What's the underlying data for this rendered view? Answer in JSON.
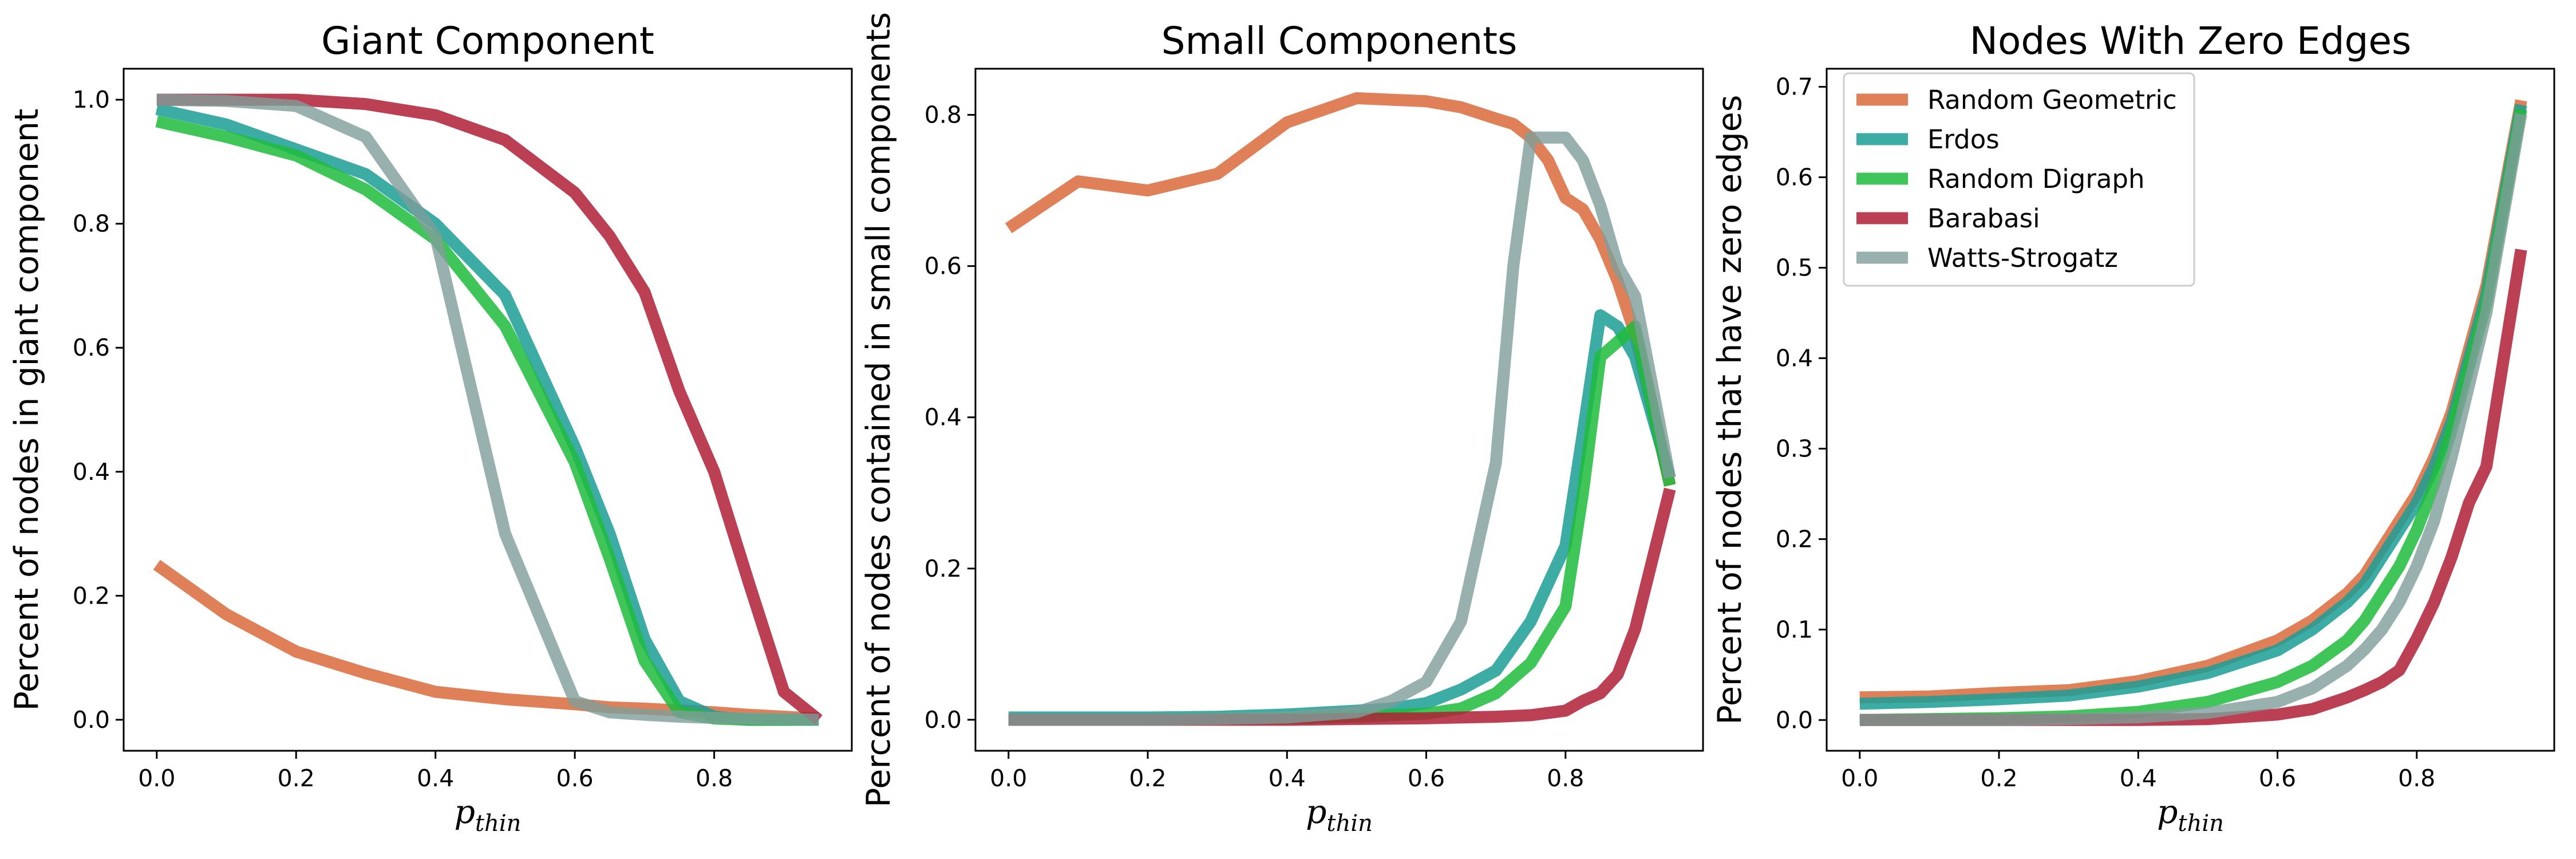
{
  "chart_data": [
    {
      "type": "line",
      "title": "Giant Component",
      "xlabel": "p_thin",
      "ylabel": "Percent of nodes in giant component",
      "xlim": [
        -0.0475,
        0.9975
      ],
      "ylim": [
        -0.05,
        1.05
      ],
      "xticks": [
        0.0,
        0.2,
        0.4,
        0.6,
        0.8
      ],
      "xtick_labels": [
        "0.0",
        "0.2",
        "0.4",
        "0.6",
        "0.8"
      ],
      "yticks": [
        0.0,
        0.2,
        0.4,
        0.6,
        0.8,
        1.0
      ],
      "ytick_labels": [
        "0.0",
        "0.2",
        "0.4",
        "0.6",
        "0.8",
        "1.0"
      ],
      "grid": false,
      "series": [
        {
          "name": "Random Geometric",
          "color": "#d96a3b",
          "alpha": 0.85,
          "x": [
            0.0,
            0.1,
            0.2,
            0.3,
            0.4,
            0.5,
            0.6,
            0.65,
            0.7,
            0.75,
            0.8,
            0.85,
            0.9,
            0.95
          ],
          "y": [
            0.25,
            0.17,
            0.11,
            0.075,
            0.045,
            0.033,
            0.025,
            0.02,
            0.018,
            0.015,
            0.012,
            0.008,
            0.005,
            0.002
          ]
        },
        {
          "name": "Erdos",
          "color": "#1b9e95",
          "alpha": 0.85,
          "x": [
            0.0,
            0.1,
            0.2,
            0.3,
            0.4,
            0.5,
            0.6,
            0.65,
            0.7,
            0.75,
            0.8,
            0.85,
            0.9,
            0.95
          ],
          "y": [
            0.985,
            0.96,
            0.92,
            0.88,
            0.8,
            0.685,
            0.44,
            0.3,
            0.13,
            0.03,
            0.005,
            0.0,
            0.0,
            0.0
          ]
        },
        {
          "name": "Random Digraph",
          "color": "#1fbb3c",
          "alpha": 0.85,
          "x": [
            0.0,
            0.1,
            0.2,
            0.3,
            0.4,
            0.5,
            0.6,
            0.65,
            0.7,
            0.75,
            0.8,
            0.85,
            0.9,
            0.95
          ],
          "y": [
            0.965,
            0.94,
            0.91,
            0.855,
            0.775,
            0.635,
            0.415,
            0.26,
            0.095,
            0.012,
            0.002,
            0.0,
            0.0,
            0.0
          ]
        },
        {
          "name": "Barabasi",
          "color": "#b01e35",
          "alpha": 0.85,
          "x": [
            0.0,
            0.1,
            0.2,
            0.3,
            0.4,
            0.5,
            0.6,
            0.65,
            0.7,
            0.75,
            0.8,
            0.85,
            0.9,
            0.95
          ],
          "y": [
            1.0,
            1.0,
            1.0,
            0.993,
            0.975,
            0.935,
            0.85,
            0.78,
            0.69,
            0.53,
            0.4,
            0.22,
            0.045,
            0.0
          ]
        },
        {
          "name": "Watts-Strogatz",
          "color": "#7e9e9a",
          "alpha": 0.8,
          "x": [
            0.0,
            0.1,
            0.2,
            0.3,
            0.4,
            0.5,
            0.6,
            0.65,
            0.7,
            0.75,
            0.8,
            0.85,
            0.9,
            0.95
          ],
          "y": [
            1.0,
            0.998,
            0.99,
            0.94,
            0.78,
            0.3,
            0.03,
            0.012,
            0.008,
            0.005,
            0.003,
            0.002,
            0.001,
            0.0
          ]
        }
      ]
    },
    {
      "type": "line",
      "title": "Small Components",
      "xlabel": "p_thin",
      "ylabel": "Percent of nodes contained in small components",
      "xlim": [
        -0.0475,
        0.9975
      ],
      "ylim": [
        -0.041,
        0.861
      ],
      "xticks": [
        0.0,
        0.2,
        0.4,
        0.6,
        0.8
      ],
      "xtick_labels": [
        "0.0",
        "0.2",
        "0.4",
        "0.6",
        "0.8"
      ],
      "yticks": [
        0.0,
        0.2,
        0.4,
        0.6,
        0.8
      ],
      "ytick_labels": [
        "0.0",
        "0.2",
        "0.4",
        "0.6",
        "0.8"
      ],
      "grid": false,
      "series": [
        {
          "name": "Random Geometric",
          "color": "#d96a3b",
          "alpha": 0.85,
          "x": [
            0.0,
            0.1,
            0.2,
            0.3,
            0.4,
            0.5,
            0.6,
            0.65,
            0.7,
            0.725,
            0.75,
            0.775,
            0.8,
            0.825,
            0.85,
            0.875,
            0.9,
            0.95
          ],
          "y": [
            0.65,
            0.712,
            0.7,
            0.722,
            0.79,
            0.822,
            0.818,
            0.81,
            0.795,
            0.788,
            0.77,
            0.74,
            0.69,
            0.675,
            0.635,
            0.58,
            0.51,
            0.31
          ]
        },
        {
          "name": "Erdos",
          "color": "#1b9e95",
          "alpha": 0.85,
          "x": [
            0.0,
            0.1,
            0.2,
            0.3,
            0.4,
            0.5,
            0.55,
            0.6,
            0.65,
            0.7,
            0.75,
            0.8,
            0.825,
            0.85,
            0.875,
            0.9,
            0.95
          ],
          "y": [
            0.003,
            0.003,
            0.003,
            0.004,
            0.007,
            0.012,
            0.015,
            0.022,
            0.04,
            0.065,
            0.13,
            0.23,
            0.38,
            0.535,
            0.52,
            0.48,
            0.32
          ]
        },
        {
          "name": "Random Digraph",
          "color": "#1fbb3c",
          "alpha": 0.85,
          "x": [
            0.0,
            0.1,
            0.2,
            0.3,
            0.4,
            0.5,
            0.6,
            0.65,
            0.7,
            0.75,
            0.8,
            0.825,
            0.85,
            0.875,
            0.9,
            0.95
          ],
          "y": [
            0.0,
            0.0,
            0.0,
            0.001,
            0.002,
            0.004,
            0.008,
            0.015,
            0.035,
            0.075,
            0.15,
            0.3,
            0.48,
            0.5,
            0.52,
            0.31
          ]
        },
        {
          "name": "Barabasi",
          "color": "#b01e35",
          "alpha": 0.85,
          "x": [
            0.0,
            0.1,
            0.2,
            0.3,
            0.4,
            0.5,
            0.6,
            0.65,
            0.7,
            0.75,
            0.8,
            0.825,
            0.85,
            0.875,
            0.9,
            0.95
          ],
          "y": [
            0.0,
            0.0,
            0.0,
            0.0,
            0.0,
            0.001,
            0.002,
            0.003,
            0.004,
            0.006,
            0.012,
            0.025,
            0.035,
            0.06,
            0.12,
            0.305
          ]
        },
        {
          "name": "Watts-Strogatz",
          "color": "#7e9e9a",
          "alpha": 0.8,
          "x": [
            0.0,
            0.1,
            0.2,
            0.3,
            0.4,
            0.5,
            0.55,
            0.6,
            0.65,
            0.7,
            0.725,
            0.75,
            0.775,
            0.8,
            0.825,
            0.85,
            0.875,
            0.9,
            0.95
          ],
          "y": [
            0.0,
            0.0,
            0.0,
            0.001,
            0.003,
            0.01,
            0.025,
            0.05,
            0.13,
            0.34,
            0.6,
            0.77,
            0.77,
            0.77,
            0.74,
            0.68,
            0.6,
            0.56,
            0.32
          ]
        }
      ]
    },
    {
      "type": "line",
      "title": "Nodes With Zero Edges",
      "xlabel": "p_thin",
      "ylabel": "Percent of nodes that have zero edges",
      "xlim": [
        -0.0475,
        0.9975
      ],
      "ylim": [
        -0.034,
        0.72
      ],
      "xticks": [
        0.0,
        0.2,
        0.4,
        0.6,
        0.8
      ],
      "xtick_labels": [
        "0.0",
        "0.2",
        "0.4",
        "0.6",
        "0.8"
      ],
      "yticks": [
        0.0,
        0.1,
        0.2,
        0.3,
        0.4,
        0.5,
        0.6,
        0.7
      ],
      "ytick_labels": [
        "0.0",
        "0.1",
        "0.2",
        "0.3",
        "0.4",
        "0.5",
        "0.6",
        "0.7"
      ],
      "grid": false,
      "legend": {
        "placement": "top-left",
        "entries": [
          "Random Geometric",
          "Erdos",
          "Random Digraph",
          "Barabasi",
          "Watts-Strogatz"
        ]
      },
      "series": [
        {
          "name": "Random Geometric",
          "color": "#d96a3b",
          "alpha": 0.85,
          "x": [
            0.0,
            0.1,
            0.2,
            0.3,
            0.4,
            0.5,
            0.6,
            0.65,
            0.7,
            0.725,
            0.75,
            0.775,
            0.8,
            0.825,
            0.85,
            0.875,
            0.9,
            0.95
          ],
          "y": [
            0.025,
            0.026,
            0.03,
            0.033,
            0.043,
            0.06,
            0.088,
            0.11,
            0.14,
            0.16,
            0.19,
            0.22,
            0.25,
            0.29,
            0.34,
            0.41,
            0.48,
            0.685
          ]
        },
        {
          "name": "Erdos",
          "color": "#1b9e95",
          "alpha": 0.85,
          "x": [
            0.0,
            0.1,
            0.2,
            0.3,
            0.4,
            0.5,
            0.6,
            0.65,
            0.7,
            0.725,
            0.75,
            0.775,
            0.8,
            0.825,
            0.85,
            0.875,
            0.9,
            0.95
          ],
          "y": [
            0.018,
            0.02,
            0.023,
            0.027,
            0.037,
            0.052,
            0.077,
            0.1,
            0.13,
            0.15,
            0.18,
            0.21,
            0.24,
            0.28,
            0.33,
            0.4,
            0.47,
            0.68
          ]
        },
        {
          "name": "Random Digraph",
          "color": "#1fbb3c",
          "alpha": 0.85,
          "x": [
            0.0,
            0.1,
            0.2,
            0.3,
            0.4,
            0.5,
            0.6,
            0.65,
            0.7,
            0.725,
            0.75,
            0.775,
            0.8,
            0.825,
            0.85,
            0.875,
            0.9,
            0.95
          ],
          "y": [
            0.0,
            0.001,
            0.002,
            0.004,
            0.009,
            0.02,
            0.042,
            0.06,
            0.088,
            0.11,
            0.14,
            0.17,
            0.21,
            0.26,
            0.32,
            0.39,
            0.46,
            0.675
          ]
        },
        {
          "name": "Barabasi",
          "color": "#b01e35",
          "alpha": 0.85,
          "x": [
            0.0,
            0.1,
            0.2,
            0.3,
            0.4,
            0.5,
            0.6,
            0.65,
            0.7,
            0.725,
            0.75,
            0.775,
            0.8,
            0.825,
            0.85,
            0.875,
            0.9,
            0.95
          ],
          "y": [
            0.0,
            0.0,
            0.0,
            0.0,
            0.0,
            0.001,
            0.006,
            0.012,
            0.025,
            0.033,
            0.042,
            0.055,
            0.09,
            0.13,
            0.18,
            0.24,
            0.28,
            0.52
          ]
        },
        {
          "name": "Watts-Strogatz",
          "color": "#7e9e9a",
          "alpha": 0.8,
          "x": [
            0.0,
            0.1,
            0.2,
            0.3,
            0.4,
            0.5,
            0.6,
            0.65,
            0.7,
            0.725,
            0.75,
            0.775,
            0.8,
            0.825,
            0.85,
            0.875,
            0.9,
            0.95
          ],
          "y": [
            0.0,
            0.0,
            0.0,
            0.001,
            0.003,
            0.008,
            0.02,
            0.035,
            0.06,
            0.078,
            0.1,
            0.13,
            0.17,
            0.22,
            0.29,
            0.37,
            0.45,
            0.67
          ]
        }
      ]
    }
  ]
}
